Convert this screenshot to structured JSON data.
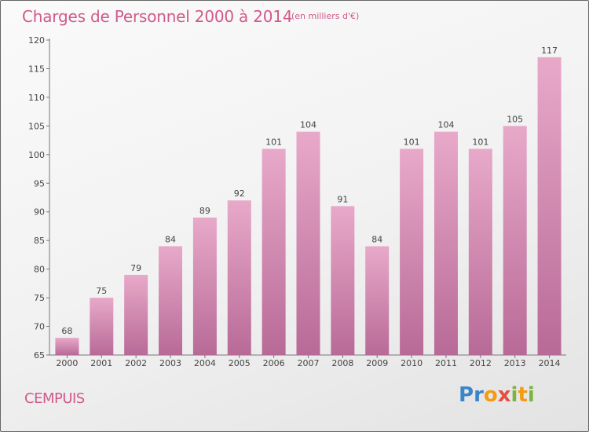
{
  "chart_data": {
    "type": "bar",
    "title": "Charges de Personnel 2000 à 2014",
    "subtitle": "(en milliers d'€)",
    "categories": [
      "2000",
      "2001",
      "2002",
      "2003",
      "2004",
      "2005",
      "2006",
      "2007",
      "2008",
      "2009",
      "2010",
      "2011",
      "2012",
      "2013",
      "2014"
    ],
    "values": [
      68,
      75,
      79,
      84,
      89,
      92,
      101,
      104,
      91,
      84,
      101,
      104,
      101,
      105,
      117
    ],
    "ylim": [
      65,
      120
    ],
    "yticks": [
      65,
      70,
      75,
      80,
      85,
      90,
      95,
      100,
      105,
      110,
      115,
      120
    ],
    "grid": false,
    "colors": {
      "bar_top": "#e8a9c9",
      "bar_bottom": "#b86a97",
      "text_accent": "#d05a8a"
    }
  },
  "footer": {
    "place": "CEMPUIS"
  },
  "logo": {
    "letters": [
      {
        "char": "P",
        "color": "#3a86c8"
      },
      {
        "char": "r",
        "color": "#3a86c8"
      },
      {
        "char": "o",
        "color": "#f39c12"
      },
      {
        "char": "x",
        "color": "#e74c3c"
      },
      {
        "char": "i",
        "color": "#7cb342"
      },
      {
        "char": "t",
        "color": "#f39c12"
      },
      {
        "char": "i",
        "color": "#7cb342"
      }
    ]
  }
}
